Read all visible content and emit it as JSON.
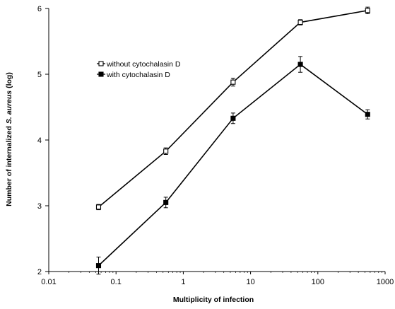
{
  "chart_data": {
    "type": "line",
    "xlabel": "Multiplicity of infection",
    "ylabel_prefix": "Number of internalized ",
    "ylabel_italic": "S. aureus",
    "ylabel_suffix": " (log)",
    "x_scale": "log",
    "xlim": [
      0.01,
      1000
    ],
    "ylim": [
      2,
      6
    ],
    "x_ticks": [
      0.01,
      0.1,
      1,
      10,
      100,
      1000
    ],
    "x_tick_labels": [
      "0.01",
      "0.1",
      "1",
      "10",
      "100",
      "1000"
    ],
    "y_ticks": [
      2,
      3,
      4,
      5,
      6
    ],
    "y_tick_labels": [
      "2",
      "3",
      "4",
      "5",
      "6"
    ],
    "grid": false,
    "legend_position": "upper-left",
    "series": [
      {
        "name": "without cytochalasin D",
        "marker": "open-square",
        "x": [
          0.055,
          0.55,
          5.5,
          55,
          550
        ],
        "y": [
          2.98,
          3.83,
          4.88,
          5.79,
          5.97
        ],
        "err": [
          0.04,
          0.05,
          0.06,
          0.04,
          0.05
        ]
      },
      {
        "name": "with cytochalasin D",
        "marker": "filled-square",
        "x": [
          0.055,
          0.55,
          5.5,
          55,
          550
        ],
        "y": [
          2.09,
          3.05,
          4.33,
          5.15,
          4.39
        ],
        "err": [
          0.13,
          0.08,
          0.08,
          0.12,
          0.07
        ]
      }
    ]
  }
}
